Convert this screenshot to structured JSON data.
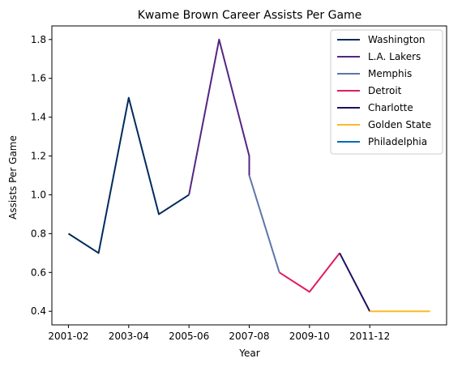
{
  "chart_data": {
    "type": "line",
    "title": "Kwame Brown Career Assists Per Game",
    "xlabel": "Year",
    "ylabel": "Assists Per Game",
    "xlim": [
      2000.45,
      2013.55
    ],
    "ylim": [
      0.33,
      1.87
    ],
    "xticks": [
      {
        "value": 2001,
        "label": "2001-02"
      },
      {
        "value": 2003,
        "label": "2003-04"
      },
      {
        "value": 2005,
        "label": "2005-06"
      },
      {
        "value": 2007,
        "label": "2007-08"
      },
      {
        "value": 2009,
        "label": "2009-10"
      },
      {
        "value": 2011,
        "label": "2011-12"
      }
    ],
    "yticks": [
      0.4,
      0.6,
      0.8,
      1.0,
      1.2,
      1.4,
      1.6,
      1.8
    ],
    "ytick_labels": [
      "0.4",
      "0.6",
      "0.8",
      "1.0",
      "1.2",
      "1.4",
      "1.6",
      "1.8"
    ],
    "grid": false,
    "legend_position": "top-right",
    "series": [
      {
        "name": "Washington",
        "color": "#002B5C",
        "points": [
          [
            2001,
            0.8
          ],
          [
            2002,
            0.7
          ],
          [
            2003,
            1.5
          ],
          [
            2004,
            0.9
          ],
          [
            2005,
            1.0
          ]
        ]
      },
      {
        "name": "L.A. Lakers",
        "color": "#552583",
        "points": [
          [
            2005,
            1.0
          ],
          [
            2006,
            1.8
          ],
          [
            2007,
            1.2
          ],
          [
            2007,
            1.1
          ]
        ]
      },
      {
        "name": "Memphis",
        "color": "#5D76A9",
        "points": [
          [
            2007,
            1.1
          ],
          [
            2008,
            0.6
          ]
        ]
      },
      {
        "name": "Detroit",
        "color": "#E01E5A",
        "points": [
          [
            2008,
            0.6
          ],
          [
            2009,
            0.5
          ],
          [
            2010,
            0.7
          ]
        ]
      },
      {
        "name": "Charlotte",
        "color": "#1D1160",
        "points": [
          [
            2010,
            0.7
          ],
          [
            2011,
            0.4
          ]
        ]
      },
      {
        "name": "Golden State",
        "color": "#FDB927",
        "points": [
          [
            2011,
            0.4
          ],
          [
            2012,
            0.4
          ],
          [
            2013,
            0.4
          ]
        ]
      },
      {
        "name": "Philadelphia",
        "color": "#006BB6",
        "points": []
      }
    ]
  }
}
